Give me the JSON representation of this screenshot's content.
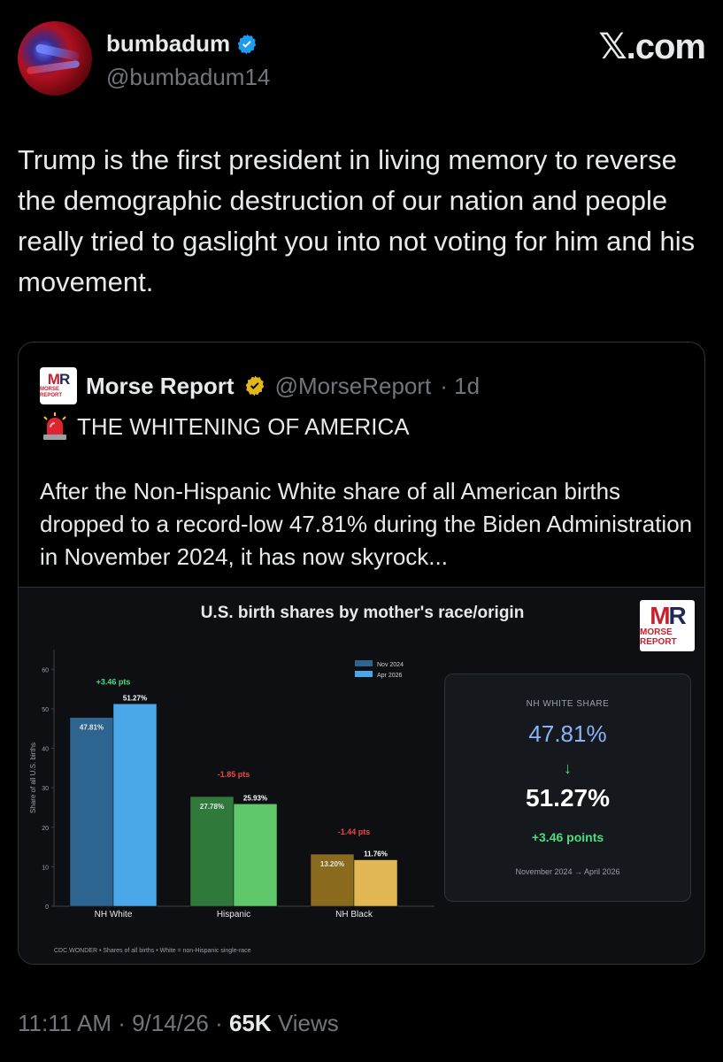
{
  "author": {
    "display_name": "bumbadum",
    "handle": "@bumbadum14",
    "verified": true
  },
  "brand": "𝕏.com",
  "tweet_text": "Trump is the first president in living memory to reverse the demographic destruction of our nation and people really tried to gaslight you into not voting for him and his movement.",
  "quote": {
    "name": "Morse Report",
    "handle": "@MorseReport",
    "time": "· 1d",
    "headline": "THE WHITENING OF AMERICA",
    "body": "After the Non-Hispanic White share of all American births dropped to a record-low 47.81% during the Biden Administration in November 2024, it has now skyrock...",
    "logo_text": "MR",
    "logo_sub": "MORSE REPORT"
  },
  "chart_data": {
    "type": "bar",
    "title": "U.S. birth shares by mother's race/origin",
    "ylabel": "Share of all U.S. births",
    "xlabel": "",
    "ylim": [
      0,
      65
    ],
    "yticks": [
      "0",
      "10",
      "20",
      "30",
      "40",
      "50",
      "60"
    ],
    "categories": [
      "NH White",
      "Hispanic",
      "NH Black"
    ],
    "legend": [
      "Nov 2024",
      "Apr 2026"
    ],
    "legend_position": "top-right",
    "series": [
      {
        "name": "Nov 2024",
        "values": [
          47.81,
          27.78,
          13.2
        ],
        "labels": [
          "47.81%",
          "27.78%",
          "13.20%"
        ]
      },
      {
        "name": "Apr 2026",
        "values": [
          51.27,
          25.93,
          11.76
        ],
        "labels": [
          "51.27%",
          "25.93%",
          "11.76%"
        ]
      }
    ],
    "deltas": [
      "+3.46 pts",
      "-1.85 pts",
      "-1.44 pts"
    ],
    "colors": {
      "nov": [
        "#2e6590",
        "#2f7a3a",
        "#8a6a1c"
      ],
      "apr": [
        "#4aa8e8",
        "#5ec86a",
        "#e2b855"
      ],
      "up": "#4ade80",
      "down": "#ef4444"
    },
    "source": "CDC WONDER • Shares of all births • White = non-Hispanic single-race"
  },
  "stat_box": {
    "label": "NH WHITE SHARE",
    "from": "47.81%",
    "arrow": "↓",
    "to": "51.27%",
    "delta": "+3.46 points",
    "range": "November 2024 → April 2026"
  },
  "footer": {
    "time": "11:11 AM · 9/14/26 · ",
    "views_count": "65K",
    "views_label": " Views"
  }
}
